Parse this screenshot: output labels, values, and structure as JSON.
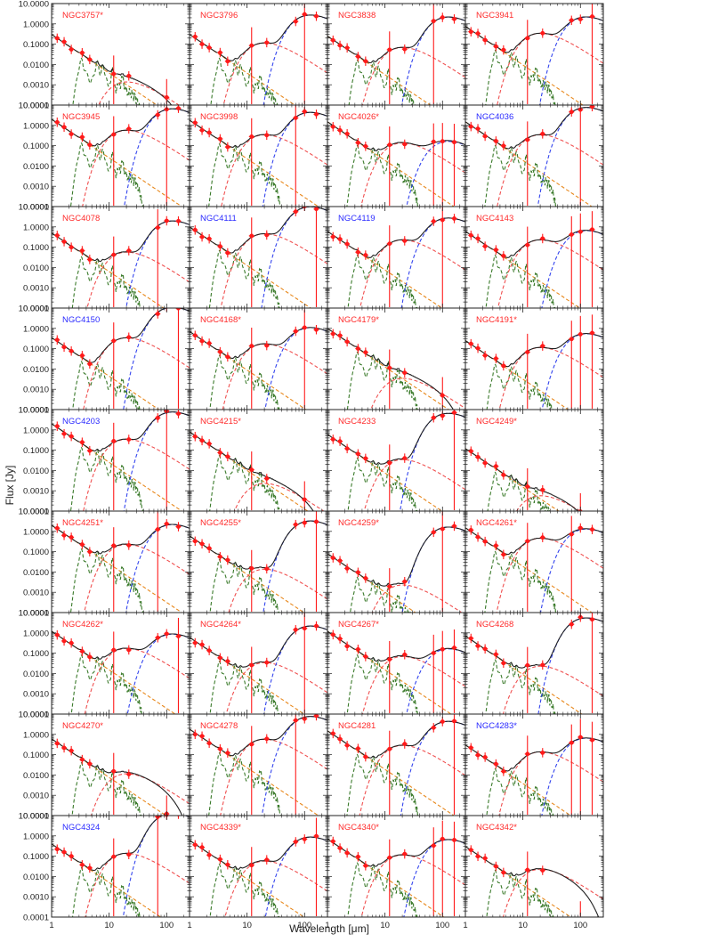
{
  "chart_data": {
    "type": "line",
    "grid": false,
    "xscale": "log",
    "yscale": "log",
    "xlim": [
      1,
      250
    ],
    "ylim": [
      0.0001,
      10
    ],
    "xlabel": "Wavelength [μm]",
    "ylabel": "Flux [Jy]",
    "xticks": [
      "1",
      "10",
      "100"
    ],
    "yticks": [
      "0.0001",
      "0.0010",
      "0.0100",
      "0.1000",
      "1.0000",
      "10.0000"
    ],
    "label_colors": {
      "red": "#ff2a2a",
      "blue": "#2a2aff"
    },
    "component_colors": {
      "total_model": "#202020",
      "stellar": "#e8891e",
      "pah": "#3a7a2a",
      "warm_dust": "#f05050",
      "cold_dust": "#3344ee",
      "observed": "#ff1a1a"
    },
    "panels": [
      {
        "name": "NGC3757*",
        "label_color": "red",
        "star": 0.3,
        "warm": 0.0012,
        "cold": 0,
        "tail": 0.6
      },
      {
        "name": "NGC3796",
        "label_color": "red",
        "star": 0.3,
        "warm": 0.1,
        "cold": 2.5,
        "tail": 0.85
      },
      {
        "name": "NGC3838",
        "label_color": "red",
        "star": 0.25,
        "warm": 0.06,
        "cold": 2.0,
        "tail": 0.95
      },
      {
        "name": "NGC3941",
        "label_color": "red",
        "star": 0.75,
        "warm": 0.3,
        "cold": 2.0,
        "tail": 0.9
      },
      {
        "name": "NGC3945",
        "label_color": "red",
        "star": 2.0,
        "warm": 0.5,
        "cold": 6.0,
        "tail": 0.85
      },
      {
        "name": "NGC3998",
        "label_color": "red",
        "star": 1.8,
        "warm": 0.3,
        "cold": 4.0,
        "tail": 0.9
      },
      {
        "name": "NGC4026*",
        "label_color": "red",
        "star": 1.5,
        "warm": 0.12,
        "cold": 0.15,
        "tail": 0.95
      },
      {
        "name": "NGC4036",
        "label_color": "blue",
        "star": 1.5,
        "warm": 0.3,
        "cold": 7.0,
        "tail": 0.9
      },
      {
        "name": "NGC4078",
        "label_color": "red",
        "star": 0.5,
        "warm": 0.05,
        "cold": 1.8,
        "tail": 0.95
      },
      {
        "name": "NGC4111",
        "label_color": "blue",
        "star": 1.0,
        "warm": 0.4,
        "cold": 9.0,
        "tail": 0.9
      },
      {
        "name": "NGC4119",
        "label_color": "blue",
        "star": 0.6,
        "warm": 0.2,
        "cold": 2.5,
        "tail": 0.85
      },
      {
        "name": "NGC4143",
        "label_color": "red",
        "star": 0.6,
        "warm": 0.2,
        "cold": 0.6,
        "tail": 0.95
      },
      {
        "name": "NGC4150",
        "label_color": "blue",
        "star": 0.35,
        "warm": 0.3,
        "cold": 10.0,
        "tail": 0.85
      },
      {
        "name": "NGC4168*",
        "label_color": "red",
        "star": 0.7,
        "warm": 0.15,
        "cold": 1.0,
        "tail": 0.95
      },
      {
        "name": "NGC4179*",
        "label_color": "red",
        "star": 1.0,
        "warm": 0.003,
        "cold": 0,
        "tail": 0.7
      },
      {
        "name": "NGC4191*",
        "label_color": "red",
        "star": 0.25,
        "warm": 0.1,
        "cold": 0.5,
        "tail": 0.95
      },
      {
        "name": "NGC4203",
        "label_color": "blue",
        "star": 2.0,
        "warm": 0.3,
        "cold": 7.0,
        "tail": 0.85
      },
      {
        "name": "NGC4215*",
        "label_color": "red",
        "star": 0.8,
        "warm": 0.002,
        "cold": 0,
        "tail": 0.7
      },
      {
        "name": "NGC4233",
        "label_color": "red",
        "star": 0.6,
        "warm": 0.03,
        "cold": 6.0,
        "tail": 0.95
      },
      {
        "name": "NGC4249*",
        "label_color": "red",
        "star": 0.12,
        "warm": 0.0005,
        "cold": 0,
        "tail": 0.6
      },
      {
        "name": "NGC4251*",
        "label_color": "red",
        "star": 2.0,
        "warm": 0.2,
        "cold": 2.0,
        "tail": 0.9
      },
      {
        "name": "NGC4255*",
        "label_color": "red",
        "star": 0.6,
        "warm": 0.012,
        "cold": 3.0,
        "tail": 0.9
      },
      {
        "name": "NGC4259*",
        "label_color": "red",
        "star": 0.08,
        "warm": 0.002,
        "cold": 1.5,
        "tail": 0.95
      },
      {
        "name": "NGC4261*",
        "label_color": "red",
        "star": 1.5,
        "warm": 0.4,
        "cold": 1.2,
        "tail": 0.95
      },
      {
        "name": "NGC4262*",
        "label_color": "red",
        "star": 1.2,
        "warm": 0.15,
        "cold": 0.8,
        "tail": 0.95
      },
      {
        "name": "NGC4264*",
        "label_color": "red",
        "star": 0.6,
        "warm": 0.03,
        "cold": 2.0,
        "tail": 0.95
      },
      {
        "name": "NGC4267*",
        "label_color": "red",
        "star": 1.2,
        "warm": 0.06,
        "cold": 0.15,
        "tail": 0.95
      },
      {
        "name": "NGC4268",
        "label_color": "red",
        "star": 0.7,
        "warm": 0.02,
        "cold": 5.0,
        "tail": 0.95
      },
      {
        "name": "NGC4270*",
        "label_color": "red",
        "star": 0.6,
        "warm": 0.01,
        "cold": 0,
        "tail": 0.6
      },
      {
        "name": "NGC4278",
        "label_color": "red",
        "star": 1.8,
        "warm": 0.5,
        "cold": 7.0,
        "tail": 0.85
      },
      {
        "name": "NGC4281",
        "label_color": "red",
        "star": 1.5,
        "warm": 0.25,
        "cold": 4.0,
        "tail": 0.9
      },
      {
        "name": "NGC4283*",
        "label_color": "blue",
        "star": 0.3,
        "warm": 0.12,
        "cold": 0.6,
        "tail": 0.95
      },
      {
        "name": "NGC4324",
        "label_color": "blue",
        "star": 0.4,
        "warm": 0.12,
        "cold": 12.0,
        "tail": 0.9
      },
      {
        "name": "NGC4339*",
        "label_color": "red",
        "star": 0.6,
        "warm": 0.05,
        "cold": 0.8,
        "tail": 0.95
      },
      {
        "name": "NGC4340*",
        "label_color": "red",
        "star": 0.7,
        "warm": 0.1,
        "cold": 0.6,
        "tail": 0.95
      },
      {
        "name": "NGC4342*",
        "label_color": "red",
        "star": 0.3,
        "warm": 0.02,
        "cold": 0,
        "tail": 0.6
      }
    ]
  }
}
